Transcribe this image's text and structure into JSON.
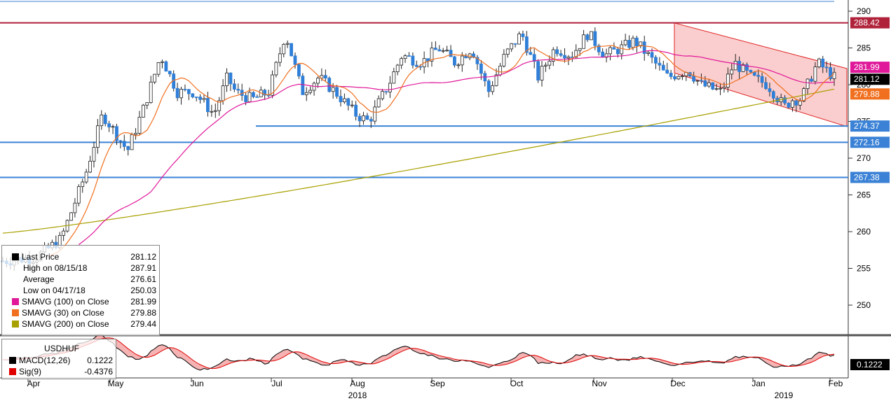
{
  "chart_data": {
    "type": "candlestick",
    "instrument": "USDHUF",
    "y_axis": {
      "range": [
        245,
        292
      ],
      "ticks": [
        250,
        255,
        260,
        265,
        270,
        275,
        280,
        285,
        290
      ]
    },
    "x_axis": {
      "months": [
        "Apr",
        "May",
        "Jun",
        "Jul",
        "Aug",
        "Sep",
        "Oct",
        "Nov",
        "Dec",
        "Jan",
        "Feb"
      ],
      "years": [
        "2018",
        "2019"
      ]
    },
    "horizontal_levels": [
      {
        "value": 288.42,
        "color": "#b0223a",
        "label": "288.42"
      },
      {
        "value": 274.37,
        "color": "#3b82d6",
        "label": "274.37"
      },
      {
        "value": 272.16,
        "color": "#3b82d6",
        "label": "272.16"
      },
      {
        "value": 267.38,
        "color": "#3b82d6",
        "label": "267.38"
      }
    ],
    "price_tags": [
      {
        "value": 281.99,
        "label": "281.99",
        "color": "#e0189a"
      },
      {
        "value": 281.12,
        "label": "281.12",
        "color": "#000000"
      },
      {
        "value": 279.88,
        "label": "279.88",
        "color": "#f07020"
      }
    ],
    "legend": {
      "rows": [
        {
          "label": "Last Price",
          "value": "281.12",
          "color": "#000000"
        },
        {
          "label": "High on 08/15/18",
          "value": "287.91",
          "color": ""
        },
        {
          "label": "Average",
          "value": "276.61",
          "color": ""
        },
        {
          "label": "Low on 04/17/18",
          "value": "250.03",
          "color": ""
        },
        {
          "label": "SMAVG (100)  on Close",
          "value": "281.99",
          "color": "#e0189a"
        },
        {
          "label": "SMAVG (30)  on Close",
          "value": "279.88",
          "color": "#f07020"
        },
        {
          "label": "SMAVG (200)  on Close",
          "value": "279.44",
          "color": "#a8a000"
        }
      ]
    },
    "macd": {
      "title": "USDHUF",
      "rows": [
        {
          "label": "MACD(12,26)",
          "value": "0.1222",
          "color": "#000000"
        },
        {
          "label": "Sig(9)",
          "value": "-0.4376",
          "color": "#e00000"
        }
      ],
      "tag": "0.1222"
    },
    "colors": {
      "up": "#ffffff",
      "down": "#2f7fd8",
      "channel": "#f6a5a5",
      "sma100": "#e0189a",
      "sma30": "#f07020",
      "sma200": "#a8a000"
    }
  }
}
